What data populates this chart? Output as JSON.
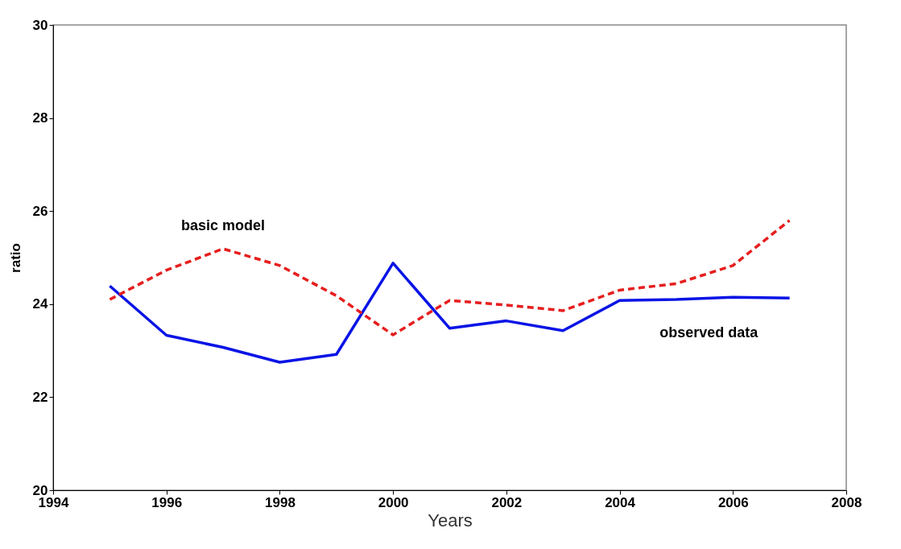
{
  "chart_data": {
    "type": "line",
    "xlabel": "Years",
    "ylabel": "ratio",
    "x": [
      1995,
      1996,
      1997,
      1998,
      1999,
      2000,
      2001,
      2002,
      2003,
      2004,
      2005,
      2006,
      2007
    ],
    "xlim": [
      1994,
      2008
    ],
    "xticks": [
      1994,
      1996,
      1998,
      2000,
      2002,
      2004,
      2006,
      2008
    ],
    "ylim": [
      20,
      30
    ],
    "yticks": [
      20,
      22,
      24,
      26,
      28,
      30
    ],
    "grid": false,
    "legend": false,
    "marker": "none",
    "series": [
      {
        "name": "observed data",
        "color": "#0a14e6",
        "line_style": "solid",
        "values": [
          24.39,
          23.33,
          23.07,
          22.75,
          22.92,
          24.88,
          23.48,
          23.64,
          23.43,
          24.08,
          24.1,
          24.15,
          24.13
        ]
      },
      {
        "name": "basic model",
        "color": "#e61e1e",
        "line_style": "dashed",
        "values": [
          24.1,
          24.73,
          25.19,
          24.83,
          24.18,
          23.34,
          24.08,
          23.98,
          23.86,
          24.3,
          24.44,
          24.83,
          25.8
        ]
      }
    ]
  }
}
